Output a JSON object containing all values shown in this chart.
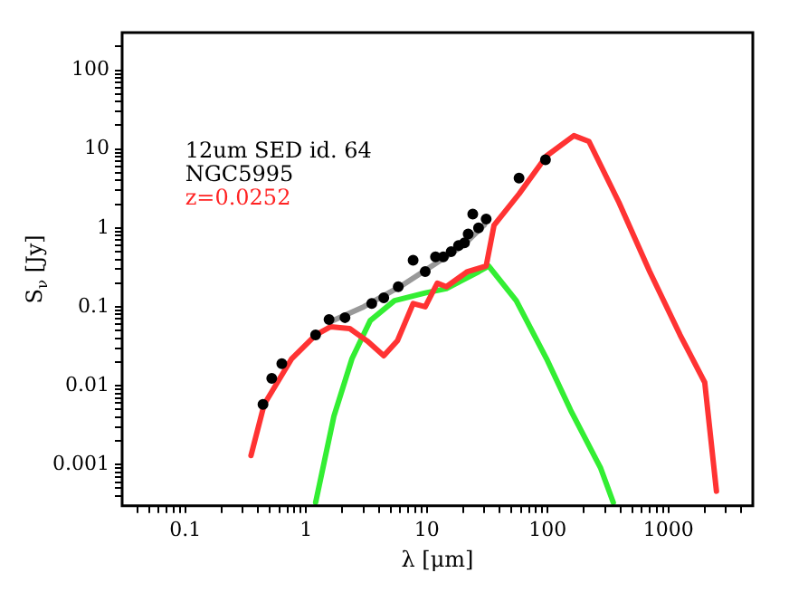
{
  "chart_data": {
    "type": "scatter",
    "xlabel": "λ [μm]",
    "ylabel": "S$_{ν}$ [Jy]",
    "annotations": [
      "12um SED id. 64",
      "NGC5995",
      "z=0.0252"
    ],
    "log": "xy",
    "grid": false,
    "legend": false,
    "marker": "circle",
    "xlim": [
      0.03,
      5000
    ],
    "ylim": [
      0.0003,
      300
    ],
    "xticks": [
      {
        "value": 0.04,
        "label": null
      },
      {
        "value": 0.05,
        "label": null
      },
      {
        "value": 0.06,
        "label": null
      },
      {
        "value": 0.07,
        "label": null
      },
      {
        "value": 0.08,
        "label": null
      },
      {
        "value": 0.09,
        "label": null
      },
      0.1,
      {
        "value": 0.2,
        "label": null
      },
      {
        "value": 0.3,
        "label": null
      },
      {
        "value": 0.4,
        "label": null
      },
      {
        "value": 0.5,
        "label": null
      },
      {
        "value": 0.6,
        "label": null
      },
      {
        "value": 0.7,
        "label": null
      },
      {
        "value": 0.8,
        "label": null
      },
      {
        "value": 0.9,
        "label": null
      },
      1,
      {
        "value": 2,
        "label": null
      },
      {
        "value": 3,
        "label": null
      },
      {
        "value": 4,
        "label": null
      },
      {
        "value": 5,
        "label": null
      },
      {
        "value": 6,
        "label": null
      },
      {
        "value": 7,
        "label": null
      },
      {
        "value": 8,
        "label": null
      },
      {
        "value": 9,
        "label": null
      },
      10,
      {
        "value": 20,
        "label": null
      },
      {
        "value": 30,
        "label": null
      },
      {
        "value": 40,
        "label": null
      },
      {
        "value": 50,
        "label": null
      },
      {
        "value": 60,
        "label": null
      },
      {
        "value": 70,
        "label": null
      },
      {
        "value": 80,
        "label": null
      },
      {
        "value": 90,
        "label": null
      },
      100,
      {
        "value": 200,
        "label": null
      },
      {
        "value": 300,
        "label": null
      },
      {
        "value": 400,
        "label": null
      },
      {
        "value": 500,
        "label": null
      },
      {
        "value": 600,
        "label": null
      },
      {
        "value": 700,
        "label": null
      },
      {
        "value": 800,
        "label": null
      },
      {
        "value": 900,
        "label": null
      },
      1000,
      {
        "value": 2000,
        "label": null
      },
      {
        "value": 3000,
        "label": null
      },
      {
        "value": 4000,
        "label": null
      }
    ],
    "yticks": [
      {
        "value": 0.0004,
        "label": null
      },
      {
        "value": 0.0005,
        "label": null
      },
      {
        "value": 0.0006,
        "label": null
      },
      {
        "value": 0.0007,
        "label": null
      },
      {
        "value": 0.0008,
        "label": null
      },
      {
        "value": 0.0009,
        "label": null
      },
      0.001,
      {
        "value": 0.002,
        "label": null
      },
      {
        "value": 0.003,
        "label": null
      },
      {
        "value": 0.004,
        "label": null
      },
      {
        "value": 0.005,
        "label": null
      },
      {
        "value": 0.006,
        "label": null
      },
      {
        "value": 0.007,
        "label": null
      },
      {
        "value": 0.008,
        "label": null
      },
      {
        "value": 0.009,
        "label": null
      },
      0.01,
      {
        "value": 0.02,
        "label": null
      },
      {
        "value": 0.03,
        "label": null
      },
      {
        "value": 0.04,
        "label": null
      },
      {
        "value": 0.05,
        "label": null
      },
      {
        "value": 0.06,
        "label": null
      },
      {
        "value": 0.07,
        "label": null
      },
      {
        "value": 0.08,
        "label": null
      },
      {
        "value": 0.09,
        "label": null
      },
      0.1,
      {
        "value": 0.2,
        "label": null
      },
      {
        "value": 0.3,
        "label": null
      },
      {
        "value": 0.4,
        "label": null
      },
      {
        "value": 0.5,
        "label": null
      },
      {
        "value": 0.6,
        "label": null
      },
      {
        "value": 0.7,
        "label": null
      },
      {
        "value": 0.8,
        "label": null
      },
      {
        "value": 0.9,
        "label": null
      },
      1,
      {
        "value": 2,
        "label": null
      },
      {
        "value": 3,
        "label": null
      },
      {
        "value": 4,
        "label": null
      },
      {
        "value": 5,
        "label": null
      },
      {
        "value": 6,
        "label": null
      },
      {
        "value": 7,
        "label": null
      },
      {
        "value": 8,
        "label": null
      },
      {
        "value": 9,
        "label": null
      },
      10,
      {
        "value": 20,
        "label": null
      },
      {
        "value": 30,
        "label": null
      },
      {
        "value": 40,
        "label": null
      },
      {
        "value": 50,
        "label": null
      },
      {
        "value": 60,
        "label": null
      },
      {
        "value": 70,
        "label": null
      },
      {
        "value": 80,
        "label": null
      },
      {
        "value": 90,
        "label": null
      },
      100,
      {
        "value": 200,
        "label": null
      }
    ],
    "series": [
      {
        "type": "line",
        "marker": "none",
        "color": "#ff3333",
        "x": [
          0.35,
          0.45,
          0.76,
          1.2,
          1.6,
          2.3,
          3.2,
          4.4,
          5.7,
          7.7,
          9.7,
          12.2,
          14.5,
          21.7,
          31,
          36,
          58,
          98,
          165,
          220,
          390,
          700,
          1250,
          2000,
          2500
        ],
        "values": [
          0.0013,
          0.0058,
          0.022,
          0.044,
          0.056,
          0.053,
          0.037,
          0.024,
          0.037,
          0.11,
          0.1,
          0.2,
          0.18,
          0.28,
          0.33,
          1.08,
          2.7,
          8.2,
          14.8,
          12.5,
          2.1,
          0.28,
          0.044,
          0.011,
          0.00046
        ]
      },
      {
        "type": "line",
        "marker": "none",
        "color": "#33ee33",
        "x": [
          1.2,
          1.7,
          2.4,
          3.4,
          5.4,
          9.7,
          14.5,
          27,
          32.5,
          55,
          98,
          155,
          275,
          350
        ],
        "values": [
          0.00033,
          0.0041,
          0.022,
          0.067,
          0.12,
          0.15,
          0.17,
          0.28,
          0.33,
          0.12,
          0.022,
          0.0049,
          0.0009,
          0.00033
        ]
      },
      {
        "type": "line",
        "marker": "none",
        "color": "#999999",
        "x": [
          1.6,
          3,
          6,
          10,
          20,
          30
        ],
        "values": [
          0.065,
          0.1,
          0.18,
          0.3,
          0.6,
          1.1
        ]
      },
      {
        "type": "scatter",
        "color": "#000000",
        "x": [
          0.44,
          0.52,
          0.63,
          1.2,
          1.55,
          2.1,
          3.5,
          4.4,
          5.8,
          7.7,
          9.7,
          11.8,
          13.7,
          15.9,
          18.3,
          20.5,
          22,
          24,
          26.8,
          31,
          58,
          96
        ],
        "values": [
          0.0058,
          0.0124,
          0.019,
          0.044,
          0.069,
          0.073,
          0.11,
          0.13,
          0.18,
          0.39,
          0.28,
          0.43,
          0.43,
          0.5,
          0.6,
          0.65,
          0.84,
          1.5,
          1.0,
          1.3,
          4.3,
          7.3
        ]
      }
    ]
  }
}
